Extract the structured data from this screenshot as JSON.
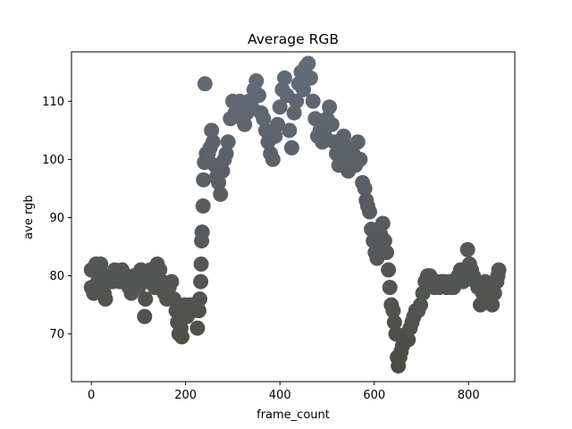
{
  "chart_data": {
    "type": "scatter",
    "title": "Average RGB",
    "xlabel": "frame_count",
    "ylabel": "ave rgb",
    "xlim": [
      -42,
      898
    ],
    "ylim": [
      61.8,
      118.5
    ],
    "xticks": [
      0,
      200,
      400,
      600,
      800
    ],
    "yticks": [
      70,
      80,
      90,
      100,
      110
    ],
    "grid": false,
    "point_color_low": "#4d4d45",
    "point_color_high": "#636b78",
    "points": [
      {
        "x": 0,
        "y": 78
      },
      {
        "x": 0,
        "y": 81
      },
      {
        "x": 5,
        "y": 77
      },
      {
        "x": 10,
        "y": 82
      },
      {
        "x": 14,
        "y": 79
      },
      {
        "x": 18,
        "y": 81
      },
      {
        "x": 20,
        "y": 82
      },
      {
        "x": 23,
        "y": 78
      },
      {
        "x": 27,
        "y": 77
      },
      {
        "x": 30,
        "y": 76
      },
      {
        "x": 35,
        "y": 79
      },
      {
        "x": 40,
        "y": 80
      },
      {
        "x": 45,
        "y": 79
      },
      {
        "x": 50,
        "y": 81
      },
      {
        "x": 55,
        "y": 80
      },
      {
        "x": 60,
        "y": 79
      },
      {
        "x": 65,
        "y": 81
      },
      {
        "x": 70,
        "y": 80
      },
      {
        "x": 75,
        "y": 79
      },
      {
        "x": 80,
        "y": 78
      },
      {
        "x": 85,
        "y": 77
      },
      {
        "x": 90,
        "y": 80
      },
      {
        "x": 95,
        "y": 79
      },
      {
        "x": 100,
        "y": 78
      },
      {
        "x": 105,
        "y": 81
      },
      {
        "x": 110,
        "y": 80
      },
      {
        "x": 113,
        "y": 73
      },
      {
        "x": 115,
        "y": 76
      },
      {
        "x": 120,
        "y": 79
      },
      {
        "x": 125,
        "y": 81
      },
      {
        "x": 130,
        "y": 80
      },
      {
        "x": 135,
        "y": 78
      },
      {
        "x": 140,
        "y": 82
      },
      {
        "x": 145,
        "y": 81
      },
      {
        "x": 150,
        "y": 79
      },
      {
        "x": 155,
        "y": 77
      },
      {
        "x": 160,
        "y": 76
      },
      {
        "x": 165,
        "y": 78
      },
      {
        "x": 170,
        "y": 79
      },
      {
        "x": 175,
        "y": 76
      },
      {
        "x": 180,
        "y": 74
      },
      {
        "x": 183,
        "y": 72
      },
      {
        "x": 186,
        "y": 70
      },
      {
        "x": 190,
        "y": 71
      },
      {
        "x": 192,
        "y": 69.5
      },
      {
        "x": 195,
        "y": 73
      },
      {
        "x": 198,
        "y": 75
      },
      {
        "x": 200,
        "y": 74
      },
      {
        "x": 203,
        "y": 73
      },
      {
        "x": 206,
        "y": 74
      },
      {
        "x": 210,
        "y": 75
      },
      {
        "x": 215,
        "y": 74
      },
      {
        "x": 220,
        "y": 75
      },
      {
        "x": 225,
        "y": 71
      },
      {
        "x": 228,
        "y": 74
      },
      {
        "x": 230,
        "y": 76
      },
      {
        "x": 232,
        "y": 79
      },
      {
        "x": 233,
        "y": 82
      },
      {
        "x": 234,
        "y": 86
      },
      {
        "x": 235,
        "y": 87.5
      },
      {
        "x": 237,
        "y": 92
      },
      {
        "x": 238,
        "y": 96.5
      },
      {
        "x": 240,
        "y": 99.5
      },
      {
        "x": 241,
        "y": 113
      },
      {
        "x": 244,
        "y": 101
      },
      {
        "x": 248,
        "y": 101
      },
      {
        "x": 252,
        "y": 102
      },
      {
        "x": 255,
        "y": 105
      },
      {
        "x": 258,
        "y": 103
      },
      {
        "x": 262,
        "y": 99
      },
      {
        "x": 266,
        "y": 97
      },
      {
        "x": 270,
        "y": 96
      },
      {
        "x": 274,
        "y": 94
      },
      {
        "x": 278,
        "y": 98
      },
      {
        "x": 282,
        "y": 100
      },
      {
        "x": 286,
        "y": 101
      },
      {
        "x": 290,
        "y": 103
      },
      {
        "x": 295,
        "y": 107
      },
      {
        "x": 300,
        "y": 110
      },
      {
        "x": 305,
        "y": 108
      },
      {
        "x": 310,
        "y": 109
      },
      {
        "x": 315,
        "y": 110
      },
      {
        "x": 320,
        "y": 107
      },
      {
        "x": 325,
        "y": 106
      },
      {
        "x": 330,
        "y": 108
      },
      {
        "x": 335,
        "y": 110
      },
      {
        "x": 340,
        "y": 109
      },
      {
        "x": 345,
        "y": 112
      },
      {
        "x": 350,
        "y": 113.5
      },
      {
        "x": 355,
        "y": 111
      },
      {
        "x": 360,
        "y": 108
      },
      {
        "x": 365,
        "y": 107
      },
      {
        "x": 370,
        "y": 105
      },
      {
        "x": 375,
        "y": 103
      },
      {
        "x": 380,
        "y": 101
      },
      {
        "x": 385,
        "y": 100
      },
      {
        "x": 390,
        "y": 104
      },
      {
        "x": 395,
        "y": 106
      },
      {
        "x": 400,
        "y": 109
      },
      {
        "x": 405,
        "y": 112
      },
      {
        "x": 410,
        "y": 114
      },
      {
        "x": 415,
        "y": 111
      },
      {
        "x": 420,
        "y": 105
      },
      {
        "x": 425,
        "y": 102
      },
      {
        "x": 430,
        "y": 108
      },
      {
        "x": 435,
        "y": 110
      },
      {
        "x": 440,
        "y": 113
      },
      {
        "x": 445,
        "y": 115
      },
      {
        "x": 450,
        "y": 112
      },
      {
        "x": 455,
        "y": 116
      },
      {
        "x": 460,
        "y": 116.5
      },
      {
        "x": 465,
        "y": 114
      },
      {
        "x": 470,
        "y": 110
      },
      {
        "x": 475,
        "y": 107
      },
      {
        "x": 480,
        "y": 104
      },
      {
        "x": 485,
        "y": 105
      },
      {
        "x": 490,
        "y": 103
      },
      {
        "x": 495,
        "y": 104
      },
      {
        "x": 500,
        "y": 107
      },
      {
        "x": 505,
        "y": 109
      },
      {
        "x": 510,
        "y": 106
      },
      {
        "x": 515,
        "y": 103
      },
      {
        "x": 520,
        "y": 101
      },
      {
        "x": 525,
        "y": 99
      },
      {
        "x": 530,
        "y": 102
      },
      {
        "x": 535,
        "y": 104
      },
      {
        "x": 540,
        "y": 100
      },
      {
        "x": 545,
        "y": 98
      },
      {
        "x": 550,
        "y": 102
      },
      {
        "x": 555,
        "y": 101
      },
      {
        "x": 560,
        "y": 99
      },
      {
        "x": 565,
        "y": 103
      },
      {
        "x": 570,
        "y": 100
      },
      {
        "x": 575,
        "y": 96
      },
      {
        "x": 580,
        "y": 95
      },
      {
        "x": 583,
        "y": 93
      },
      {
        "x": 586,
        "y": 92
      },
      {
        "x": 590,
        "y": 91
      },
      {
        "x": 594,
        "y": 88
      },
      {
        "x": 598,
        "y": 86
      },
      {
        "x": 602,
        "y": 84
      },
      {
        "x": 606,
        "y": 83
      },
      {
        "x": 610,
        "y": 84
      },
      {
        "x": 614,
        "y": 87
      },
      {
        "x": 618,
        "y": 89
      },
      {
        "x": 622,
        "y": 86
      },
      {
        "x": 626,
        "y": 84
      },
      {
        "x": 630,
        "y": 81
      },
      {
        "x": 633,
        "y": 78
      },
      {
        "x": 636,
        "y": 75
      },
      {
        "x": 640,
        "y": 74
      },
      {
        "x": 643,
        "y": 72
      },
      {
        "x": 646,
        "y": 70
      },
      {
        "x": 649,
        "y": 66
      },
      {
        "x": 651,
        "y": 64.5
      },
      {
        "x": 654,
        "y": 66
      },
      {
        "x": 657,
        "y": 67
      },
      {
        "x": 660,
        "y": 68
      },
      {
        "x": 664,
        "y": 69
      },
      {
        "x": 668,
        "y": 70
      },
      {
        "x": 672,
        "y": 69
      },
      {
        "x": 676,
        "y": 71
      },
      {
        "x": 680,
        "y": 72
      },
      {
        "x": 684,
        "y": 73
      },
      {
        "x": 688,
        "y": 74
      },
      {
        "x": 693,
        "y": 74
      },
      {
        "x": 698,
        "y": 75
      },
      {
        "x": 703,
        "y": 77
      },
      {
        "x": 708,
        "y": 79
      },
      {
        "x": 713,
        "y": 80
      },
      {
        "x": 718,
        "y": 80
      },
      {
        "x": 723,
        "y": 79
      },
      {
        "x": 728,
        "y": 78
      },
      {
        "x": 733,
        "y": 79
      },
      {
        "x": 738,
        "y": 78
      },
      {
        "x": 743,
        "y": 79
      },
      {
        "x": 748,
        "y": 79
      },
      {
        "x": 753,
        "y": 78
      },
      {
        "x": 758,
        "y": 79
      },
      {
        "x": 763,
        "y": 78
      },
      {
        "x": 768,
        "y": 78
      },
      {
        "x": 773,
        "y": 79
      },
      {
        "x": 778,
        "y": 80
      },
      {
        "x": 783,
        "y": 81
      },
      {
        "x": 788,
        "y": 79
      },
      {
        "x": 793,
        "y": 80
      },
      {
        "x": 798,
        "y": 84.5
      },
      {
        "x": 802,
        "y": 82
      },
      {
        "x": 806,
        "y": 81
      },
      {
        "x": 810,
        "y": 80
      },
      {
        "x": 815,
        "y": 79
      },
      {
        "x": 820,
        "y": 78
      },
      {
        "x": 825,
        "y": 75
      },
      {
        "x": 830,
        "y": 77
      },
      {
        "x": 835,
        "y": 79
      },
      {
        "x": 840,
        "y": 78
      },
      {
        "x": 845,
        "y": 76
      },
      {
        "x": 850,
        "y": 75
      },
      {
        "x": 855,
        "y": 77
      },
      {
        "x": 860,
        "y": 79
      },
      {
        "x": 862,
        "y": 80
      },
      {
        "x": 864,
        "y": 81
      }
    ]
  }
}
